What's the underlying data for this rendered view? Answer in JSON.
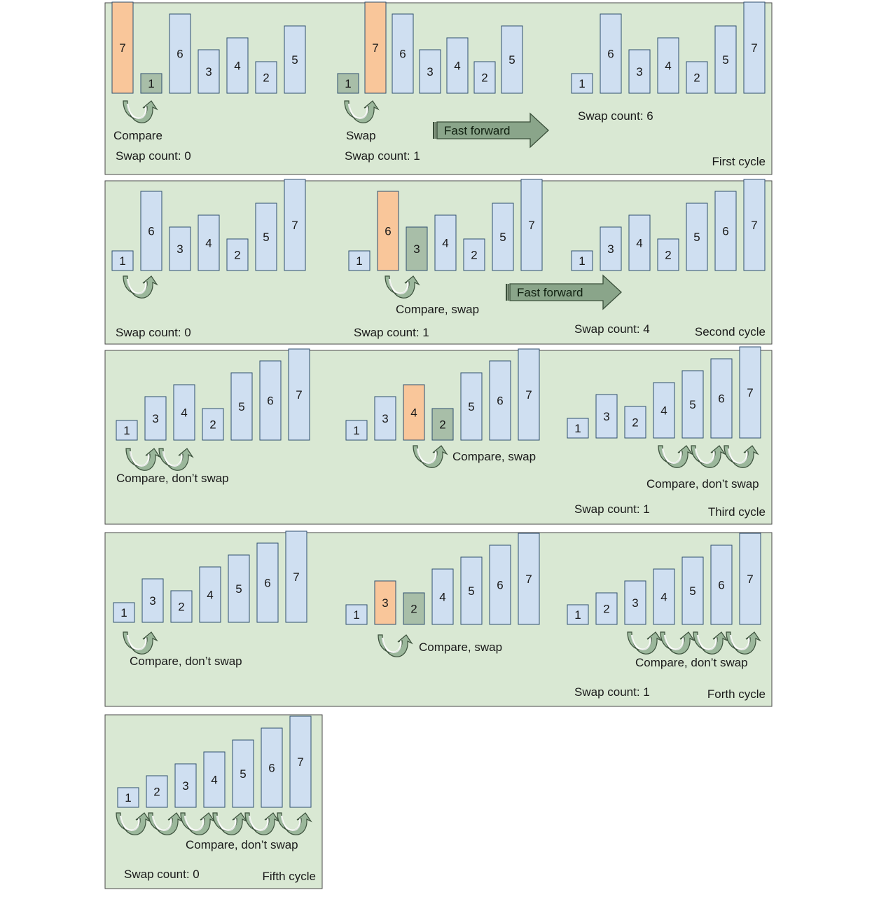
{
  "colors": {
    "panel_fill": "#d9e8d3",
    "panel_stroke": "#4a4a4a",
    "bar_default": "#cfdff1",
    "bar_highlight": "#f9c69a",
    "bar_compared": "#a8bea8",
    "bar_stroke": "#2f4f6f",
    "arrow_fill": "#9bb79b",
    "text": "#1a1a1a"
  },
  "panels": [
    {
      "id": "cycle-1",
      "caption": "First cycle",
      "groups": [
        {
          "values": [
            7,
            1,
            6,
            3,
            4,
            2,
            5
          ],
          "states": [
            "highlight",
            "compared",
            "default",
            "default",
            "default",
            "default",
            "default"
          ],
          "arrows": 1,
          "label": "Compare",
          "swap_text": "Swap count: 0"
        },
        {
          "values": [
            1,
            7,
            6,
            3,
            4,
            2,
            5
          ],
          "states": [
            "compared",
            "highlight",
            "default",
            "default",
            "default",
            "default",
            "default"
          ],
          "arrows": 1,
          "label": "Swap",
          "swap_text": "Swap count: 1"
        },
        {
          "values": [
            1,
            6,
            3,
            4,
            2,
            5,
            7
          ],
          "states": [
            "default",
            "default",
            "default",
            "default",
            "default",
            "default",
            "default"
          ],
          "arrows": 0,
          "label": "",
          "swap_text": "Swap count: 6"
        }
      ],
      "fast_forward": "Fast forward"
    },
    {
      "id": "cycle-2",
      "caption": "Second cycle",
      "groups": [
        {
          "values": [
            1,
            6,
            3,
            4,
            2,
            5,
            7
          ],
          "states": [
            "default",
            "default",
            "default",
            "default",
            "default",
            "default",
            "default"
          ],
          "arrows": 1,
          "label": "",
          "swap_text": "Swap count: 0"
        },
        {
          "values": [
            1,
            6,
            3,
            4,
            2,
            5,
            7
          ],
          "states": [
            "default",
            "highlight",
            "compared",
            "default",
            "default",
            "default",
            "default"
          ],
          "arrows": 1,
          "label": "Compare, swap",
          "swap_text": "Swap count: 1"
        },
        {
          "values": [
            1,
            3,
            4,
            2,
            5,
            6,
            7
          ],
          "states": [
            "default",
            "default",
            "default",
            "default",
            "default",
            "default",
            "default"
          ],
          "arrows": 0,
          "label": "",
          "swap_text": "Swap count: 4"
        }
      ],
      "fast_forward": "Fast forward"
    },
    {
      "id": "cycle-3",
      "caption": "Third cycle",
      "groups": [
        {
          "values": [
            1,
            3,
            4,
            2,
            5,
            6,
            7
          ],
          "states": [
            "default",
            "default",
            "default",
            "default",
            "default",
            "default",
            "default"
          ],
          "arrows": 2,
          "label": "Compare, don’t swap",
          "swap_text": ""
        },
        {
          "values": [
            1,
            3,
            4,
            2,
            5,
            6,
            7
          ],
          "states": [
            "default",
            "default",
            "highlight",
            "compared",
            "default",
            "default",
            "default"
          ],
          "arrows": 1,
          "label": "Compare, swap",
          "swap_text": ""
        },
        {
          "values": [
            1,
            3,
            2,
            4,
            5,
            6,
            7
          ],
          "states": [
            "default",
            "default",
            "default",
            "default",
            "default",
            "default",
            "default"
          ],
          "arrows": 3,
          "label": "Compare, don’t swap",
          "swap_text": "Swap count: 1"
        }
      ],
      "fast_forward": ""
    },
    {
      "id": "cycle-4",
      "caption": "Forth cycle",
      "groups": [
        {
          "values": [
            1,
            3,
            2,
            4,
            5,
            6,
            7
          ],
          "states": [
            "default",
            "default",
            "default",
            "default",
            "default",
            "default",
            "default"
          ],
          "arrows": 1,
          "label": "Compare, don’t swap",
          "swap_text": ""
        },
        {
          "values": [
            1,
            3,
            2,
            4,
            5,
            6,
            7
          ],
          "states": [
            "default",
            "highlight",
            "compared",
            "default",
            "default",
            "default",
            "default"
          ],
          "arrows": 1,
          "label": "Compare, swap",
          "swap_text": ""
        },
        {
          "values": [
            1,
            2,
            3,
            4,
            5,
            6,
            7
          ],
          "states": [
            "default",
            "default",
            "default",
            "default",
            "default",
            "default",
            "default"
          ],
          "arrows": 4,
          "label": "Compare, don’t swap",
          "swap_text": "Swap count: 1"
        }
      ],
      "fast_forward": ""
    },
    {
      "id": "cycle-5",
      "caption": "Fifth cycle",
      "groups": [
        {
          "values": [
            1,
            2,
            3,
            4,
            5,
            6,
            7
          ],
          "states": [
            "default",
            "default",
            "default",
            "default",
            "default",
            "default",
            "default"
          ],
          "arrows": 6,
          "label": "Compare, don’t swap",
          "swap_text": "Swap count: 0"
        }
      ],
      "fast_forward": ""
    }
  ]
}
